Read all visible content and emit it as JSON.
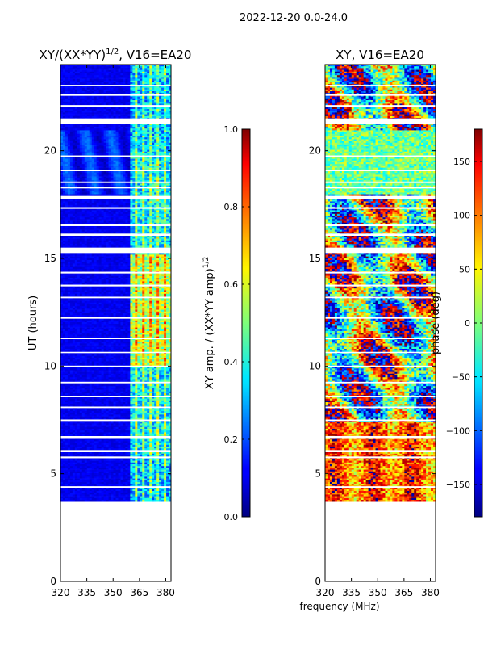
{
  "suptitle": "2022-12-20 0.0-24.0",
  "colors": {
    "background": "#ffffff",
    "missing": "#ffffff"
  },
  "chart_data": [
    {
      "type": "heatmap",
      "title_main": "XY/(XX*YY)",
      "title_sup": "1/2",
      "title_tail": ", V16=EA20",
      "xlabel": "",
      "ylabel": "UT (hours)",
      "xlim": [
        320,
        383
      ],
      "ylim": [
        0,
        24
      ],
      "xticks": [
        320,
        335,
        350,
        365,
        380
      ],
      "yticks": [
        0,
        5,
        10,
        15,
        20
      ],
      "colormap": "jet",
      "data_start_hour": 3.75,
      "data_end_hour": 24.0,
      "active_band_mhz": [
        360,
        383
      ],
      "description_values": "normalized cross amplitude, near 0 below 360 MHz, 0.2-0.8 in 360-383 MHz band",
      "colorbar": {
        "label_main": "XY amp. / (XX*YY amp)",
        "label_sup": "1/2",
        "range": [
          0.0,
          1.0
        ],
        "ticks": [
          0.0,
          0.2,
          0.4,
          0.6,
          0.8,
          1.0
        ],
        "tick_labels": [
          "0.0",
          "0.2",
          "0.4",
          "0.6",
          "0.8",
          "1.0"
        ]
      }
    },
    {
      "type": "heatmap",
      "title": "XY, V16=EA20",
      "xlabel": "frequency (MHz)",
      "ylabel": "",
      "xlim": [
        320,
        383
      ],
      "ylim": [
        0,
        24
      ],
      "xticks": [
        320,
        335,
        350,
        365,
        380
      ],
      "yticks": [
        0,
        5,
        10,
        15,
        20
      ],
      "colormap": "jet",
      "data_start_hour": 3.75,
      "data_end_hour": 24.0,
      "description_values": "cross-correlation phase, spans -180 to 180 deg",
      "colorbar": {
        "label": "phase (deg)",
        "range": [
          -180,
          180
        ],
        "ticks": [
          -150,
          -100,
          -50,
          0,
          50,
          100,
          150
        ],
        "tick_labels": [
          "−150",
          "−100",
          "−50",
          "0",
          "50",
          "100",
          "150"
        ]
      }
    }
  ],
  "gaps_hours": [
    [
      23.0,
      23.06
    ],
    [
      22.55,
      22.62
    ],
    [
      22.05,
      22.12
    ],
    [
      21.5,
      21.25
    ],
    [
      19.7,
      19.78
    ],
    [
      19.05,
      19.12
    ],
    [
      18.5,
      18.57
    ],
    [
      18.25,
      18.32
    ],
    [
      17.9,
      17.75
    ],
    [
      17.3,
      17.38
    ],
    [
      16.5,
      16.58
    ],
    [
      16.05,
      16.15
    ],
    [
      15.5,
      15.25
    ],
    [
      14.3,
      14.38
    ],
    [
      13.7,
      13.78
    ],
    [
      13.15,
      13.22
    ],
    [
      12.2,
      12.27
    ],
    [
      11.25,
      11.32
    ],
    [
      10.6,
      10.66
    ],
    [
      9.95,
      10.02
    ],
    [
      9.2,
      9.27
    ],
    [
      8.55,
      8.62
    ],
    [
      8.05,
      8.12
    ],
    [
      7.45,
      7.52
    ],
    [
      6.75,
      6.62
    ],
    [
      6.1,
      6.0
    ],
    [
      5.8,
      5.72
    ],
    [
      4.35,
      4.42
    ]
  ]
}
